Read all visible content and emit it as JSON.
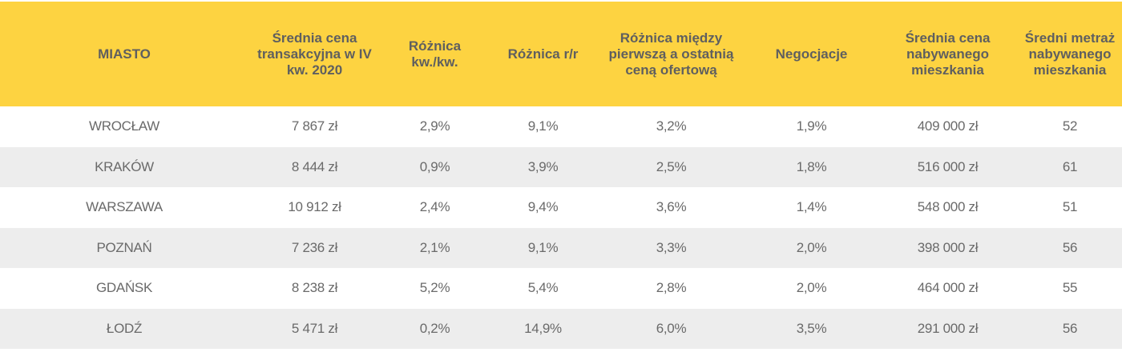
{
  "colors": {
    "header_bg": "#fdd341",
    "header_text": "#5f5f5f",
    "row_alt_bg": "#ededed",
    "cell_text": "#6a6a6a"
  },
  "table": {
    "headers": [
      "MIASTO",
      "Średnia cena transakcyjna w IV kw. 2020",
      "Różnica kw./kw.",
      "Różnica r/r",
      "Różnica między pierwszą a ostatnią ceną ofertową",
      "Negocjacje",
      "Średnia cena nabywanego mieszkania",
      "Średni metraż nabywanego mieszkania"
    ],
    "rows": [
      [
        "WROCŁAW",
        "7 867 zł",
        "2,9%",
        "9,1%",
        "3,2%",
        "1,9%",
        "409 000 zł",
        "52"
      ],
      [
        "KRAKÓW",
        "8 444 zł",
        "0,9%",
        "3,9%",
        "2,5%",
        "1,8%",
        "516 000 zł",
        "61"
      ],
      [
        "WARSZAWA",
        "10 912 zł",
        "2,4%",
        "9,4%",
        "3,6%",
        "1,4%",
        "548 000 zł",
        "51"
      ],
      [
        "POZNAŃ",
        "7 236 zł",
        "2,1%",
        "9,1%",
        "3,3%",
        "2,0%",
        "398 000 zł",
        "56"
      ],
      [
        "GDAŃSK",
        "8 238 zł",
        "5,2%",
        "5,4%",
        "2,8%",
        "2,0%",
        "464 000 zł",
        "55"
      ],
      [
        "ŁODŹ",
        "5 471 zł",
        "0,2%",
        "14,9%",
        "6,0%",
        "3,5%",
        "291 000 zł",
        "56"
      ]
    ]
  }
}
